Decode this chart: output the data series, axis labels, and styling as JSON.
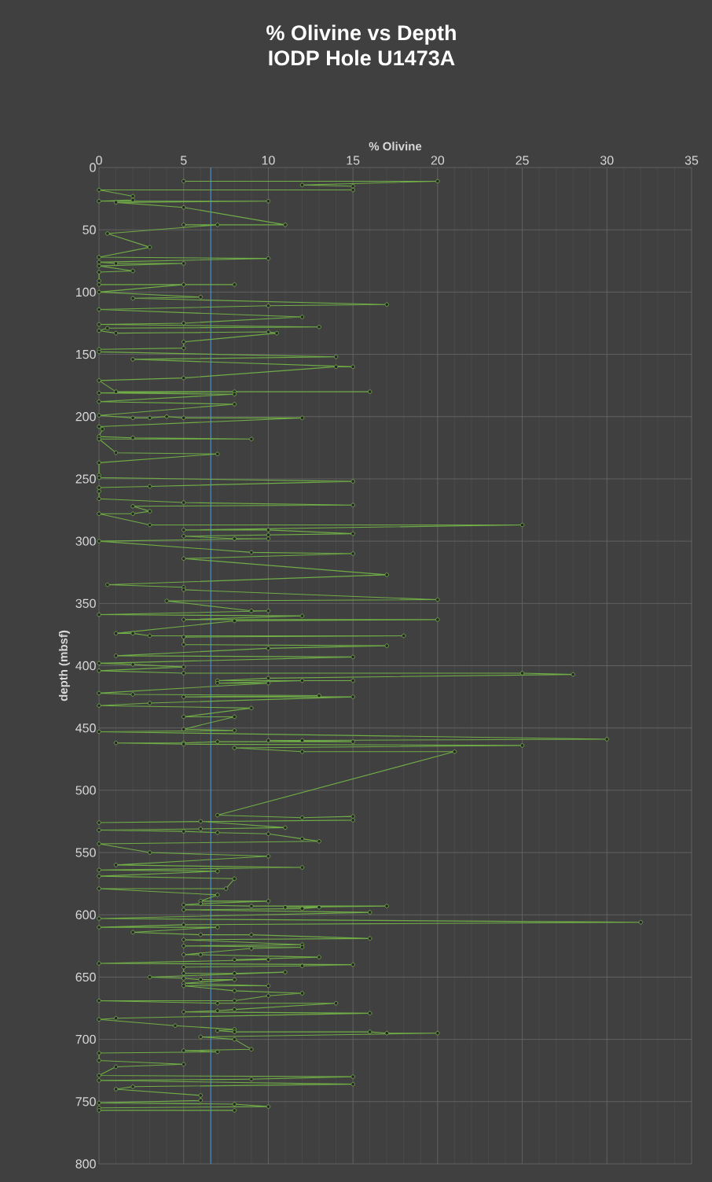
{
  "chart_data": {
    "type": "line",
    "title": "% Olivine vs Depth",
    "subtitle": "IODP Hole U1473A",
    "xlabel": "% Olivine",
    "ylabel": "depth (mbsf)",
    "xlim": [
      0,
      35
    ],
    "xticks": [
      0,
      5,
      10,
      15,
      20,
      25,
      30,
      35
    ],
    "ylim": [
      800,
      0
    ],
    "yticks": [
      0,
      50,
      100,
      150,
      200,
      250,
      300,
      350,
      400,
      450,
      500,
      550,
      600,
      650,
      700,
      750,
      800
    ],
    "grid": true,
    "marker": "circle",
    "line_style": "solid",
    "ref_lines": [
      {
        "axis": "x",
        "value": 6.6,
        "color": "#5b9bd5"
      }
    ],
    "series": [
      {
        "color": "#70ad47",
        "x": [
          5,
          20,
          12,
          15,
          15,
          0,
          2,
          2,
          0,
          10,
          1,
          5,
          11,
          5,
          7,
          0.5,
          3,
          0,
          10,
          0,
          1,
          5,
          0,
          2,
          0,
          0,
          0,
          8,
          5,
          0,
          6,
          2,
          17,
          10,
          0,
          12,
          5,
          0,
          13,
          0.5,
          0,
          1,
          10,
          10.5,
          5,
          5,
          0,
          0,
          14,
          2,
          15,
          14,
          5,
          0,
          1,
          16,
          8,
          0,
          8,
          0,
          8,
          0,
          2,
          3,
          4,
          5,
          12,
          0,
          0.2,
          0,
          2,
          9,
          0,
          1,
          7,
          0,
          0,
          0,
          15,
          3,
          0,
          0,
          0,
          5,
          15,
          2,
          3,
          2,
          0,
          3,
          25,
          5,
          10,
          15,
          10,
          5,
          8,
          10,
          0,
          9,
          15,
          5,
          17,
          0.5,
          5,
          5,
          20,
          4,
          9,
          10,
          0,
          12,
          5,
          20,
          8,
          1,
          2,
          3,
          18,
          5,
          5,
          17,
          10,
          1,
          15,
          0,
          2,
          5,
          0,
          5,
          25,
          28,
          10,
          7,
          15,
          12,
          7,
          10,
          0,
          2,
          13,
          5,
          15,
          3,
          0,
          9,
          5,
          8,
          5,
          8,
          0,
          30,
          12,
          10,
          15,
          7,
          5,
          1,
          5,
          25,
          8,
          12,
          21,
          7,
          12,
          15,
          15,
          0,
          6,
          11,
          6,
          0,
          5,
          7,
          10,
          12,
          13,
          0,
          3,
          10,
          1,
          12,
          0,
          7,
          0,
          8,
          7.5,
          0,
          7,
          6,
          10,
          6,
          5,
          9,
          17,
          11,
          13,
          12,
          5,
          16,
          0,
          32,
          5,
          0,
          7,
          2,
          6,
          9,
          16,
          5,
          12,
          5,
          12,
          9,
          5,
          6,
          13,
          8,
          10,
          0,
          15,
          12,
          5,
          5,
          8,
          11,
          3,
          5,
          6,
          8,
          5,
          10,
          5,
          8,
          12,
          10,
          8,
          0,
          7,
          14,
          8,
          7,
          5,
          16,
          1,
          0,
          4.5,
          8,
          7,
          8,
          16,
          17,
          20,
          6,
          8,
          9,
          5,
          7,
          0,
          0,
          5,
          1,
          0,
          15,
          9,
          0,
          15,
          2,
          1,
          6,
          6,
          0,
          8,
          10,
          0,
          0,
          8
        ],
        "values": [
          11,
          11,
          14,
          15,
          18,
          18,
          23,
          26,
          27,
          27,
          28,
          32,
          46,
          46,
          46,
          53,
          64,
          72,
          73,
          76,
          77,
          77,
          79,
          83,
          84,
          91,
          94,
          94,
          94,
          100,
          104,
          105,
          110,
          111,
          114,
          120,
          125,
          126,
          128,
          129,
          131,
          133,
          132,
          133,
          140,
          145,
          146,
          148,
          152,
          154,
          160,
          160,
          169,
          171,
          180,
          180,
          180,
          181,
          182,
          188,
          190,
          199,
          201,
          201,
          200,
          201,
          201,
          208,
          210,
          216,
          217,
          218,
          218,
          229,
          230,
          237,
          247,
          249,
          252,
          256,
          257,
          260,
          266,
          269,
          271,
          272,
          276,
          278,
          278,
          287,
          287,
          291,
          291,
          294,
          295,
          296,
          298,
          298,
          300,
          309,
          310,
          314,
          327,
          335,
          337,
          339,
          347,
          348,
          356,
          356,
          359,
          360,
          363,
          363,
          364,
          374,
          374,
          376,
          376,
          377,
          383,
          384,
          386,
          392,
          393,
          398,
          399,
          401,
          404,
          406,
          406,
          407,
          410,
          412,
          412,
          412,
          414,
          414,
          422,
          423,
          424,
          425,
          425,
          430,
          432,
          434,
          441,
          441,
          451,
          452,
          453,
          459,
          460,
          460,
          461,
          461,
          462,
          462,
          463,
          464,
          466,
          469,
          469,
          520,
          522,
          521,
          524,
          526,
          525,
          530,
          531,
          532,
          533,
          534,
          535,
          539,
          541,
          543,
          550,
          553,
          560,
          562,
          564,
          565,
          569,
          571,
          579,
          579,
          584,
          589,
          589,
          591,
          592,
          593,
          593,
          594,
          594,
          595,
          596,
          598,
          603,
          606,
          608,
          610,
          610,
          614,
          616,
          616,
          619,
          620,
          624,
          625,
          626,
          627,
          632,
          632,
          634,
          636,
          636,
          639,
          640,
          641,
          642,
          647,
          647,
          646,
          650,
          651,
          652,
          652,
          655,
          657,
          657,
          661,
          663,
          665,
          669,
          669,
          671,
          671,
          676,
          677,
          678,
          679,
          683,
          684,
          689,
          692,
          693,
          694,
          694,
          695,
          695,
          698,
          700,
          708,
          709,
          710,
          711,
          717,
          720,
          722,
          729,
          730,
          732,
          733,
          736,
          738,
          740,
          745,
          749,
          751,
          752,
          754,
          755,
          757,
          757
        ]
      }
    ]
  }
}
